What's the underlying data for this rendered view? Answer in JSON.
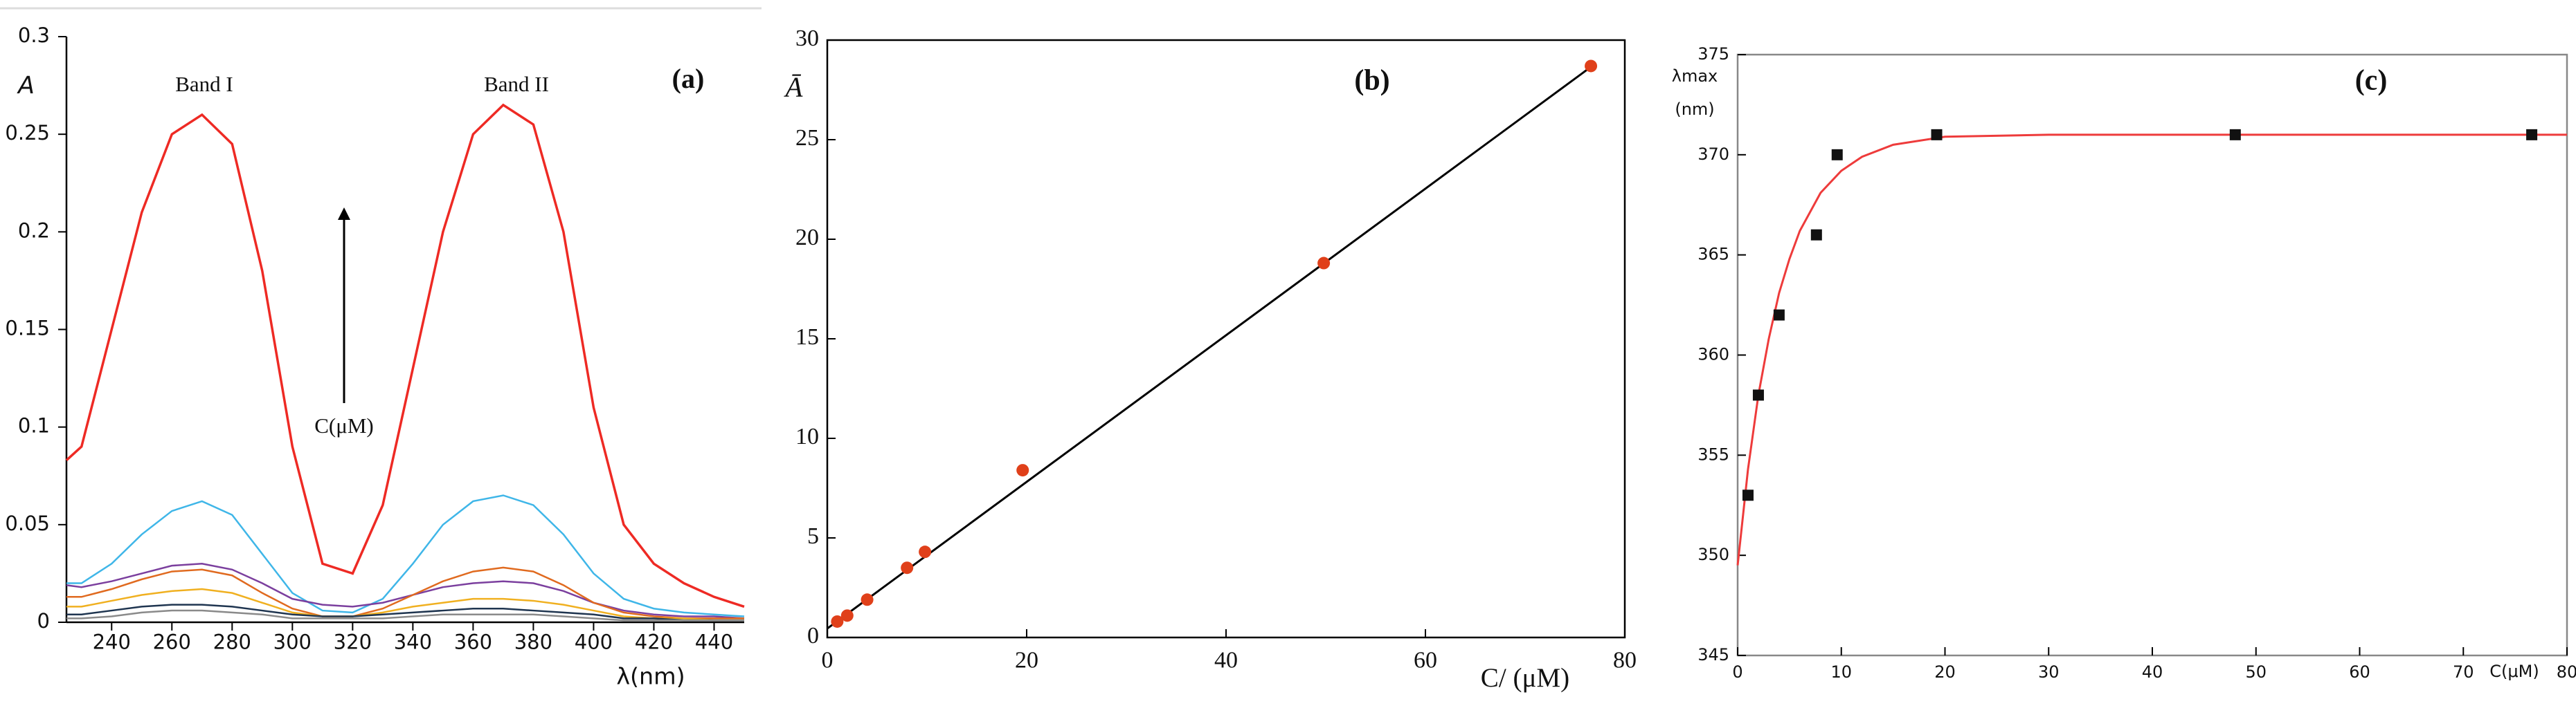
{
  "chart_data": [
    {
      "type": "line",
      "y_label": "A",
      "x_label": "λ(nm)",
      "panel_label": "(a)",
      "annotations": [
        "Band I",
        "Band II",
        "C(μM)"
      ],
      "x": [
        225,
        230,
        240,
        250,
        260,
        270,
        280,
        290,
        300,
        310,
        320,
        330,
        340,
        350,
        360,
        370,
        380,
        390,
        400,
        410,
        420,
        430,
        440,
        450
      ],
      "series": [
        {
          "color": "#ee2a24",
          "values": [
            0.083,
            0.09,
            0.15,
            0.21,
            0.25,
            0.26,
            0.245,
            0.18,
            0.09,
            0.03,
            0.025,
            0.06,
            0.13,
            0.2,
            0.25,
            0.265,
            0.255,
            0.2,
            0.11,
            0.05,
            0.03,
            0.02,
            0.013,
            0.008
          ]
        },
        {
          "color": "#3fb6e8",
          "values": [
            0.02,
            0.02,
            0.03,
            0.045,
            0.057,
            0.062,
            0.055,
            0.035,
            0.015,
            0.006,
            0.005,
            0.012,
            0.03,
            0.05,
            0.062,
            0.065,
            0.06,
            0.045,
            0.025,
            0.012,
            0.007,
            0.005,
            0.004,
            0.003
          ]
        },
        {
          "color": "#7b3f9e",
          "values": [
            0.019,
            0.018,
            0.021,
            0.025,
            0.029,
            0.03,
            0.027,
            0.02,
            0.012,
            0.009,
            0.008,
            0.01,
            0.014,
            0.018,
            0.02,
            0.021,
            0.02,
            0.016,
            0.01,
            0.006,
            0.004,
            0.003,
            0.003,
            0.002
          ]
        },
        {
          "color": "#e06a1f",
          "values": [
            0.013,
            0.013,
            0.017,
            0.022,
            0.026,
            0.027,
            0.024,
            0.015,
            0.007,
            0.003,
            0.003,
            0.007,
            0.014,
            0.021,
            0.026,
            0.028,
            0.026,
            0.019,
            0.01,
            0.005,
            0.003,
            0.002,
            0.002,
            0.002
          ]
        },
        {
          "color": "#f0b020",
          "values": [
            0.008,
            0.008,
            0.011,
            0.014,
            0.016,
            0.017,
            0.015,
            0.01,
            0.005,
            0.003,
            0.003,
            0.005,
            0.008,
            0.01,
            0.012,
            0.012,
            0.011,
            0.009,
            0.006,
            0.003,
            0.002,
            0.002,
            0.001,
            0.001
          ]
        },
        {
          "color": "#1f3550",
          "values": [
            0.004,
            0.004,
            0.006,
            0.008,
            0.009,
            0.009,
            0.008,
            0.006,
            0.004,
            0.003,
            0.003,
            0.004,
            0.005,
            0.006,
            0.007,
            0.007,
            0.006,
            0.005,
            0.004,
            0.002,
            0.002,
            0.001,
            0.001,
            0.001
          ]
        },
        {
          "color": "#8a8a8a",
          "values": [
            0.002,
            0.002,
            0.003,
            0.005,
            0.006,
            0.006,
            0.005,
            0.004,
            0.002,
            0.002,
            0.002,
            0.002,
            0.003,
            0.004,
            0.004,
            0.004,
            0.004,
            0.003,
            0.002,
            0.001,
            0.001,
            0.001,
            0.001,
            0.001
          ]
        }
      ],
      "xlim": [
        225,
        450
      ],
      "xticks": [
        240,
        260,
        280,
        300,
        320,
        340,
        360,
        380,
        400,
        420,
        440
      ],
      "ylim": [
        0,
        0.3
      ],
      "yticks": [
        0,
        0.05,
        0.1,
        0.15,
        0.2,
        0.25,
        0.3
      ]
    },
    {
      "type": "scatter",
      "y_label": "Ā",
      "x_label": "C/ (μM)",
      "panel_label": "(b)",
      "series": [
        {
          "color": "#e0401a",
          "x": [
            1,
            2,
            4,
            8,
            9.8,
            19.6,
            49.8,
            76.6
          ],
          "values": [
            0.8,
            1.1,
            1.9,
            3.5,
            4.3,
            8.4,
            18.8,
            28.7
          ]
        }
      ],
      "fit": {
        "color": "#000000",
        "x": [
          0,
          77
        ],
        "values": [
          0.45,
          28.8
        ]
      },
      "xlim": [
        0,
        80
      ],
      "xticks": [
        0,
        20,
        40,
        60,
        80
      ],
      "ylim": [
        0,
        30
      ],
      "yticks": [
        0,
        5,
        10,
        15,
        20,
        25,
        30
      ]
    },
    {
      "type": "scatter",
      "y_label": [
        "λmax",
        "(nm)"
      ],
      "x_label": "C(μM)",
      "panel_label": "(c)",
      "series": [
        {
          "color": "#111111",
          "x": [
            1,
            2,
            4,
            7.6,
            9.6,
            19.2,
            48,
            76.6
          ],
          "values": [
            353,
            358,
            362,
            366,
            370,
            371,
            371,
            371
          ]
        }
      ],
      "fit": {
        "color": "#ee3b3b",
        "x": [
          0,
          1,
          2,
          3,
          4,
          5,
          6,
          8,
          10,
          12,
          15,
          20,
          30,
          40,
          80
        ],
        "values": [
          349.5,
          354.3,
          358,
          360.8,
          363.1,
          364.8,
          366.2,
          368.1,
          369.2,
          369.9,
          370.5,
          370.9,
          371,
          371,
          371
        ]
      },
      "xlim": [
        0,
        80
      ],
      "xticks": [
        0,
        10,
        20,
        30,
        40,
        50,
        60,
        70,
        80
      ],
      "ylim": [
        345,
        375
      ],
      "yticks": [
        345,
        350,
        355,
        360,
        365,
        370,
        375
      ]
    }
  ]
}
